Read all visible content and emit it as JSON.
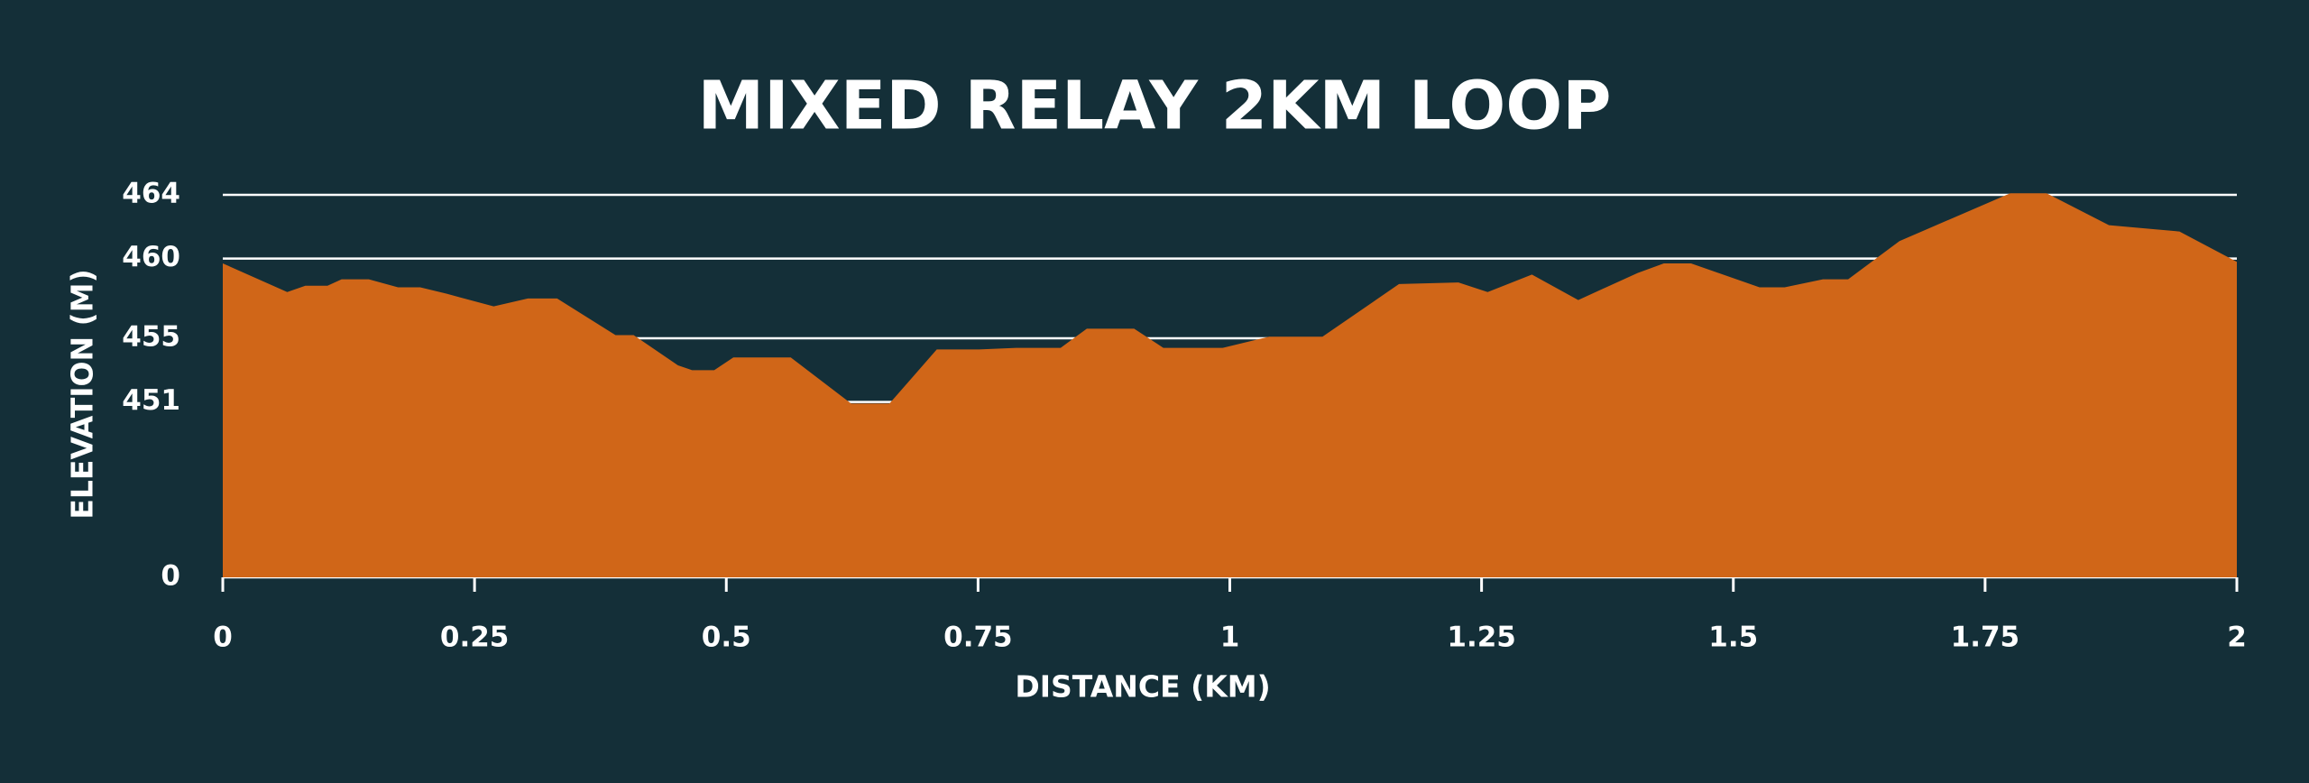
{
  "chart_data": {
    "type": "area",
    "title": "MIXED RELAY 2KM LOOP",
    "x_label": "DISTANCE (KM)",
    "y_label": "ELEVATION (M)",
    "x": [
      0,
      0.064,
      0.082,
      0.104,
      0.118,
      0.145,
      0.174,
      0.196,
      0.222,
      0.269,
      0.303,
      0.332,
      0.39,
      0.408,
      0.452,
      0.466,
      0.488,
      0.507,
      0.564,
      0.624,
      0.662,
      0.709,
      0.751,
      0.788,
      0.832,
      0.858,
      0.905,
      0.934,
      0.993,
      1.039,
      1.092,
      1.168,
      1.227,
      1.256,
      1.3,
      1.346,
      1.405,
      1.431,
      1.458,
      1.526,
      1.551,
      1.589,
      1.614,
      1.665,
      1.775,
      1.811,
      1.873,
      1.943,
      2
    ],
    "values": [
      459.7,
      457.9,
      458.3,
      458.3,
      458.7,
      458.7,
      458.2,
      458.2,
      457.8,
      457.0,
      457.5,
      457.5,
      455.2,
      455.2,
      453.3,
      453.0,
      453.0,
      453.8,
      453.8,
      450.9,
      450.9,
      454.3,
      454.3,
      454.4,
      454.4,
      455.6,
      455.6,
      454.4,
      454.4,
      455.1,
      455.1,
      458.4,
      458.5,
      457.9,
      459.0,
      457.4,
      459.1,
      459.7,
      459.7,
      458.2,
      458.2,
      458.7,
      458.7,
      461.1,
      464.1,
      464.1,
      462.1,
      461.7,
      459.8
    ],
    "color": "#d06618",
    "xlim": [
      0,
      2
    ],
    "xticks": [
      0,
      0.25,
      0.5,
      0.75,
      1,
      1.25,
      1.5,
      1.75,
      2
    ],
    "ylim": [
      440,
      464
    ],
    "yticks": [
      {
        "value": 440,
        "label": "0"
      },
      451,
      455,
      460,
      464
    ],
    "grid": true
  }
}
